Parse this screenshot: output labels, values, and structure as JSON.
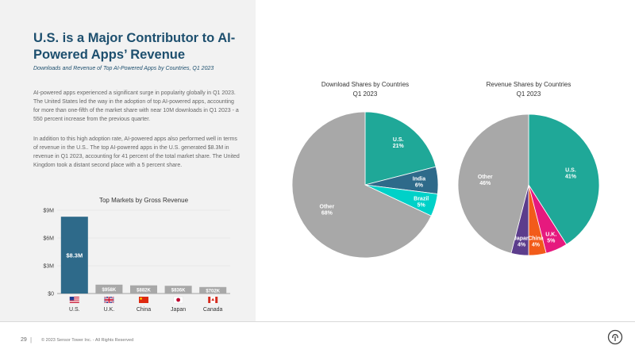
{
  "title": "U.S. is a Major Contributor to AI-Powered Apps’ Revenue",
  "subtitle": "Downloads and Revenue of Top AI-Powered Apps by Countries, Q1 2023",
  "paragraph1": "AI-powered apps experienced a significant surge in popularity globally in Q1 2023. The United States led the way in the adoption of top AI-powered apps, accounting for more than one-fifth of the market share with near 10M downloads in Q1 2023 - a 550 percent increase from the previous quarter.",
  "paragraph2": "In addition to this high adoption rate, AI-powered apps also performed well in terms of revenue in the U.S.. The top AI-powered apps in the U.S. generated $8.3M in revenue in Q1 2023, accounting for 41 percent of the total market share. The United Kingdom took a distant second place with a 5 percent share.",
  "footer": {
    "page_number": "29",
    "separator": "|",
    "copyright": "© 2023 Sensor Tower Inc. - All Rights Reserved"
  },
  "colors": {
    "title": "#1d4f6e",
    "us_bar": "#2e6a8a",
    "other_bars": "#a8a8a8",
    "teal": "#1fa898",
    "dark_blue": "#2e6a8a",
    "cyan": "#00d1c8",
    "gray": "#a8a8a8",
    "pink": "#e6197e",
    "orange": "#f25b1a",
    "purple": "#5c3d8c"
  },
  "chart_data": [
    {
      "type": "bar",
      "title": "Top Markets by Gross Revenue",
      "categories": [
        "U.S.",
        "U.K.",
        "China",
        "Japan",
        "Canada"
      ],
      "flag_icons": [
        "us-flag-icon",
        "uk-flag-icon",
        "china-flag-icon",
        "japan-flag-icon",
        "canada-flag-icon"
      ],
      "values": [
        8.3,
        0.958,
        0.882,
        0.836,
        0.702
      ],
      "data_labels": [
        "$8.3M",
        "$958K",
        "$882K",
        "$836K",
        "$702K"
      ],
      "ylim": [
        0,
        9
      ],
      "yticks": [
        0,
        3,
        6,
        9
      ],
      "ytick_labels": [
        "$0",
        "$3M",
        "$6M",
        "$9M"
      ]
    },
    {
      "type": "pie",
      "title": "Download Shares by Countries",
      "subtitle": "Q1 2023",
      "slices": [
        {
          "label": "U.S.",
          "value": 21,
          "display": "21%",
          "color": "#1fa898"
        },
        {
          "label": "India",
          "value": 6,
          "display": "6%",
          "color": "#2e6a8a"
        },
        {
          "label": "Brazil",
          "value": 5,
          "display": "5%",
          "color": "#00d1c8"
        },
        {
          "label": "Other",
          "value": 68,
          "display": "68%",
          "color": "#a8a8a8"
        }
      ]
    },
    {
      "type": "pie",
      "title": "Revenue Shares by Countries",
      "subtitle": "Q1 2023",
      "slices": [
        {
          "label": "U.S.",
          "value": 41,
          "display": "41%",
          "color": "#1fa898"
        },
        {
          "label": "U.K.",
          "value": 5,
          "display": "5%",
          "color": "#e6197e"
        },
        {
          "label": "China",
          "value": 4,
          "display": "4%",
          "color": "#f25b1a"
        },
        {
          "label": "Japan",
          "value": 4,
          "display": "4%",
          "color": "#5c3d8c"
        },
        {
          "label": "Other",
          "value": 46,
          "display": "46%",
          "color": "#a8a8a8"
        }
      ]
    }
  ]
}
